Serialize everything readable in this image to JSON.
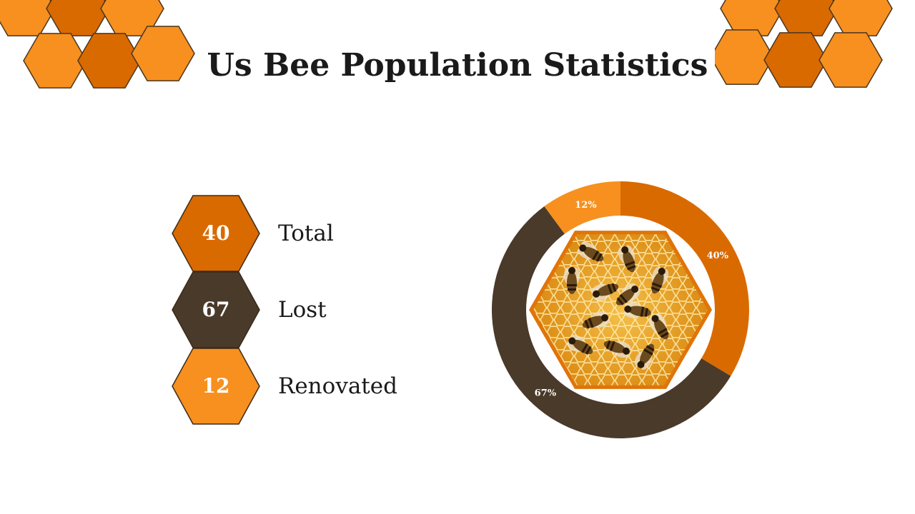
{
  "title": "Us Bee Population Statistics",
  "colors": {
    "orange_dark": "#d96a00",
    "orange_light": "#f7901e",
    "brown": "#4a3a2a",
    "outline": "#4a3520",
    "white": "#ffffff",
    "honey": "#e89a1c"
  },
  "stats": [
    {
      "value": "40",
      "label": "Total",
      "color": "#d96a00"
    },
    {
      "value": "67",
      "label": "Lost",
      "color": "#4a3a2a"
    },
    {
      "value": "12",
      "label": "Renovated",
      "color": "#f7901e"
    }
  ],
  "image": {
    "icon": "honeycomb-bees-photo"
  },
  "chart_data": {
    "type": "pie",
    "variant": "donut",
    "slices": [
      {
        "label": "40%",
        "value": 40,
        "color": "#d96a00"
      },
      {
        "label": "67%",
        "value": 67,
        "color": "#4a3a2a"
      },
      {
        "label": "12%",
        "value": 12,
        "color": "#f7901e"
      }
    ],
    "start": "top",
    "direction": "clockwise",
    "legend": "none"
  }
}
